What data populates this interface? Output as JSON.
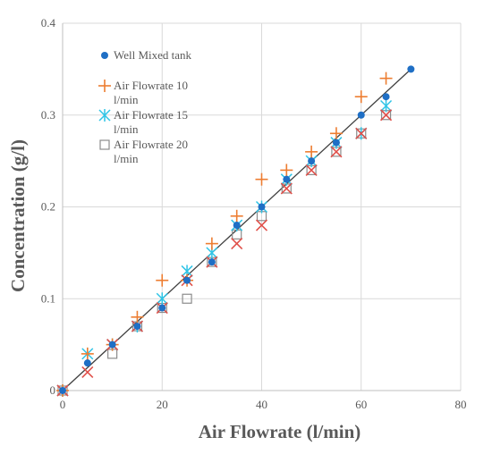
{
  "chart_data": {
    "type": "scatter",
    "title": "",
    "xlabel": "Air Flowrate (l/min)",
    "ylabel": "Concentration (g/l)",
    "xlim": [
      0,
      80
    ],
    "ylim": [
      0,
      0.4
    ],
    "x_ticks": [
      0,
      20,
      40,
      60,
      80
    ],
    "y_ticks": [
      0,
      0.1,
      0.2,
      0.3,
      0.4
    ],
    "x_tick_labels": [
      "0",
      "20",
      "40",
      "60",
      "80"
    ],
    "y_tick_labels": [
      "0",
      "0.1",
      "0.2",
      "0.3",
      "0.4"
    ],
    "grid": true,
    "legend_position": "upper-left",
    "trend_line": {
      "x": [
        0,
        70
      ],
      "y": [
        0,
        0.35
      ],
      "color": "#404040"
    },
    "series": [
      {
        "name": "Well Mixed tank",
        "marker": "circle",
        "color": "#1f6fc5",
        "x": [
          0,
          5,
          10,
          15,
          20,
          25,
          30,
          35,
          40,
          45,
          50,
          55,
          60,
          65,
          70
        ],
        "y": [
          0,
          0.03,
          0.05,
          0.07,
          0.09,
          0.12,
          0.14,
          0.18,
          0.2,
          0.23,
          0.25,
          0.27,
          0.3,
          0.32,
          0.35
        ]
      },
      {
        "name": "Air Flowrate 10 l/min",
        "marker": "plus",
        "color": "#ed7d31",
        "x": [
          0,
          5,
          10,
          15,
          20,
          25,
          30,
          35,
          40,
          45,
          50,
          55,
          60,
          65
        ],
        "y": [
          0,
          0.04,
          0.05,
          0.08,
          0.12,
          0.12,
          0.16,
          0.19,
          0.23,
          0.24,
          0.26,
          0.28,
          0.32,
          0.34
        ]
      },
      {
        "name": "Air Flowrate 15 l/min",
        "marker": "asterisk",
        "color": "#2ec4e6",
        "x": [
          0,
          5,
          10,
          15,
          20,
          25,
          30,
          35,
          40,
          45,
          50,
          55,
          60,
          65
        ],
        "y": [
          0,
          0.04,
          0.05,
          0.07,
          0.1,
          0.13,
          0.15,
          0.18,
          0.2,
          0.23,
          0.25,
          0.27,
          0.28,
          0.31
        ]
      },
      {
        "name": "Air Flowrate 20 l/min",
        "marker": "square",
        "color": "#8c8c8c",
        "x": [
          0,
          10,
          15,
          20,
          25,
          30,
          35,
          40,
          45,
          50,
          55,
          60,
          65
        ],
        "y": [
          0,
          0.04,
          0.07,
          0.09,
          0.1,
          0.14,
          0.17,
          0.19,
          0.22,
          0.24,
          0.26,
          0.28,
          0.3
        ]
      },
      {
        "name": "",
        "marker": "x",
        "color": "#e0504a",
        "x": [
          0,
          5,
          10,
          15,
          20,
          25,
          30,
          35,
          40,
          45,
          50,
          55,
          60,
          65
        ],
        "y": [
          0,
          0.02,
          0.05,
          0.07,
          0.09,
          0.12,
          0.14,
          0.16,
          0.18,
          0.22,
          0.24,
          0.26,
          0.28,
          0.3
        ]
      }
    ],
    "legend": [
      {
        "lines": [
          "Well Mixed tank"
        ],
        "series_index": 0
      },
      {
        "lines": [
          "Air Flowrate 10",
          "l/min"
        ],
        "series_index": 1
      },
      {
        "lines": [
          "Air Flowrate 15",
          "l/min"
        ],
        "series_index": 2
      },
      {
        "lines": [
          "Air Flowrate 20",
          "l/min"
        ],
        "series_index": 3
      }
    ]
  }
}
